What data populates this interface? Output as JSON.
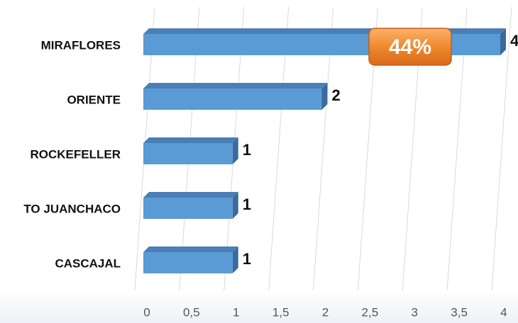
{
  "chart_data": {
    "type": "bar",
    "orientation": "horizontal",
    "categories": [
      "MIRAFLORES",
      "ORIENTE",
      "ROCKEFELLER",
      "TO JUANCHACO",
      "CASCAJAL"
    ],
    "values": [
      4,
      2,
      1,
      1,
      1
    ],
    "color": "#5b9bd5",
    "xlim": [
      0,
      4
    ],
    "xticks": [
      0,
      {
        "value": 0.5,
        "label": "0,5"
      },
      1,
      {
        "value": 1.5,
        "label": "1,5"
      },
      2,
      {
        "value": 2.5,
        "label": "2,5"
      },
      3,
      {
        "value": 3.5,
        "label": "3,5"
      },
      4
    ],
    "grid": true,
    "annotation": "44%"
  }
}
